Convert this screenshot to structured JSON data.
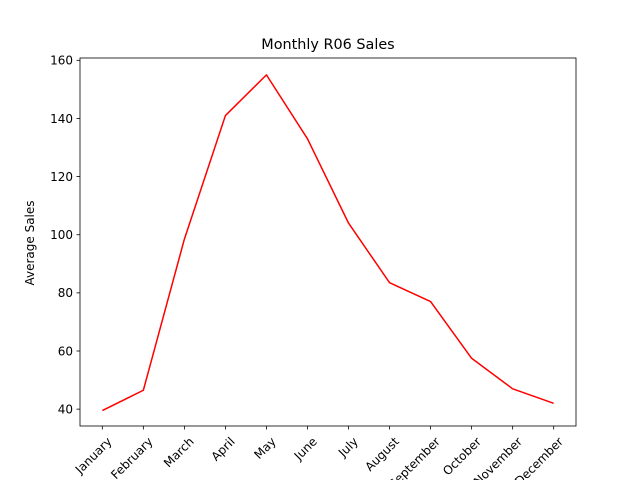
{
  "chart_data": {
    "type": "line",
    "title": "Monthly R06 Sales",
    "xlabel": "",
    "ylabel": "Average Sales",
    "categories": [
      "January",
      "February",
      "March",
      "April",
      "May",
      "June",
      "July",
      "August",
      "September",
      "October",
      "November",
      "December"
    ],
    "series": [
      {
        "values": [
          39.5,
          46.5,
          98.5,
          141.0,
          155.0,
          133.0,
          104.0,
          83.5,
          77.0,
          57.5,
          47.0,
          42.0
        ],
        "color": "#ff0000"
      }
    ],
    "ylim": [
      34.2,
      160.8
    ],
    "yticks": [
      40,
      60,
      80,
      100,
      120,
      140,
      160
    ],
    "grid": false,
    "legend": "none"
  }
}
